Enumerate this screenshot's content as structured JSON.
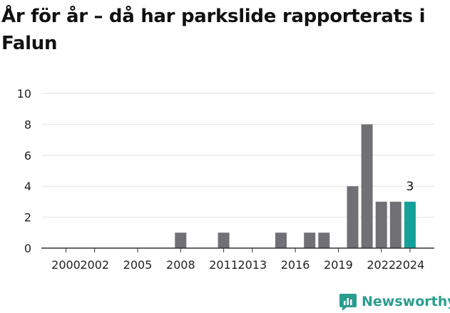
{
  "title": "År för år – då har parkslide rapporterats i Falun",
  "brand": {
    "name": "Newsworthy",
    "icon": "newsworthy-logo-icon",
    "color": "#2a9d8f"
  },
  "colors": {
    "bar": "#717076",
    "highlight": "#14a19a",
    "grid": "#e3e3e3",
    "axis": "#333333"
  },
  "chart_data": {
    "type": "bar",
    "title": "År för år – då har parkslide rapporterats i Falun",
    "xlabel": "",
    "ylabel": "",
    "ylim": [
      0,
      10
    ],
    "yticks": [
      0,
      2,
      4,
      6,
      8,
      10
    ],
    "xticks": [
      2000,
      2002,
      2005,
      2008,
      2011,
      2013,
      2016,
      2019,
      2022,
      2024
    ],
    "grid": true,
    "categories": [
      2000,
      2001,
      2002,
      2003,
      2004,
      2005,
      2006,
      2007,
      2008,
      2009,
      2010,
      2011,
      2012,
      2013,
      2014,
      2015,
      2016,
      2017,
      2018,
      2019,
      2020,
      2021,
      2022,
      2023,
      2024
    ],
    "values": [
      0,
      0,
      0,
      0,
      0,
      0,
      0,
      0,
      1,
      0,
      0,
      1,
      0,
      0,
      0,
      1,
      0,
      1,
      1,
      0,
      4,
      8,
      3,
      3,
      3
    ],
    "highlight": 2024,
    "data_labels": [
      {
        "x": 2024,
        "text": "3"
      }
    ]
  }
}
